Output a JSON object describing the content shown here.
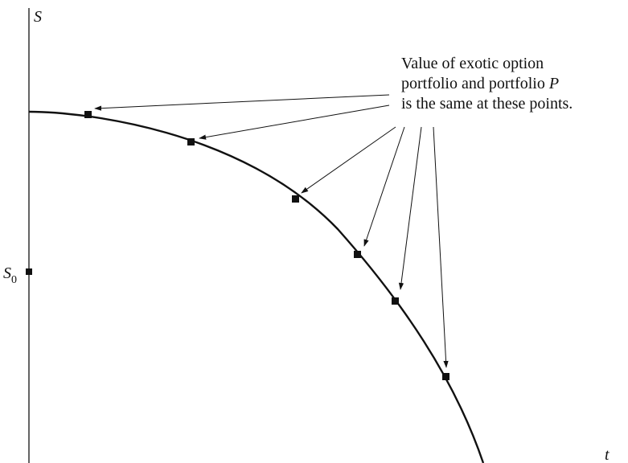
{
  "axes": {
    "y_label": "S",
    "x_label": "t",
    "s0_label_main": "S",
    "s0_label_sub": "0"
  },
  "annotation": {
    "line1": "Value of exotic option",
    "line2_prefix": "portfolio and portfolio ",
    "line2_italic": "P",
    "line3": "is the same at these points."
  },
  "colors": {
    "ink": "#111111"
  }
}
